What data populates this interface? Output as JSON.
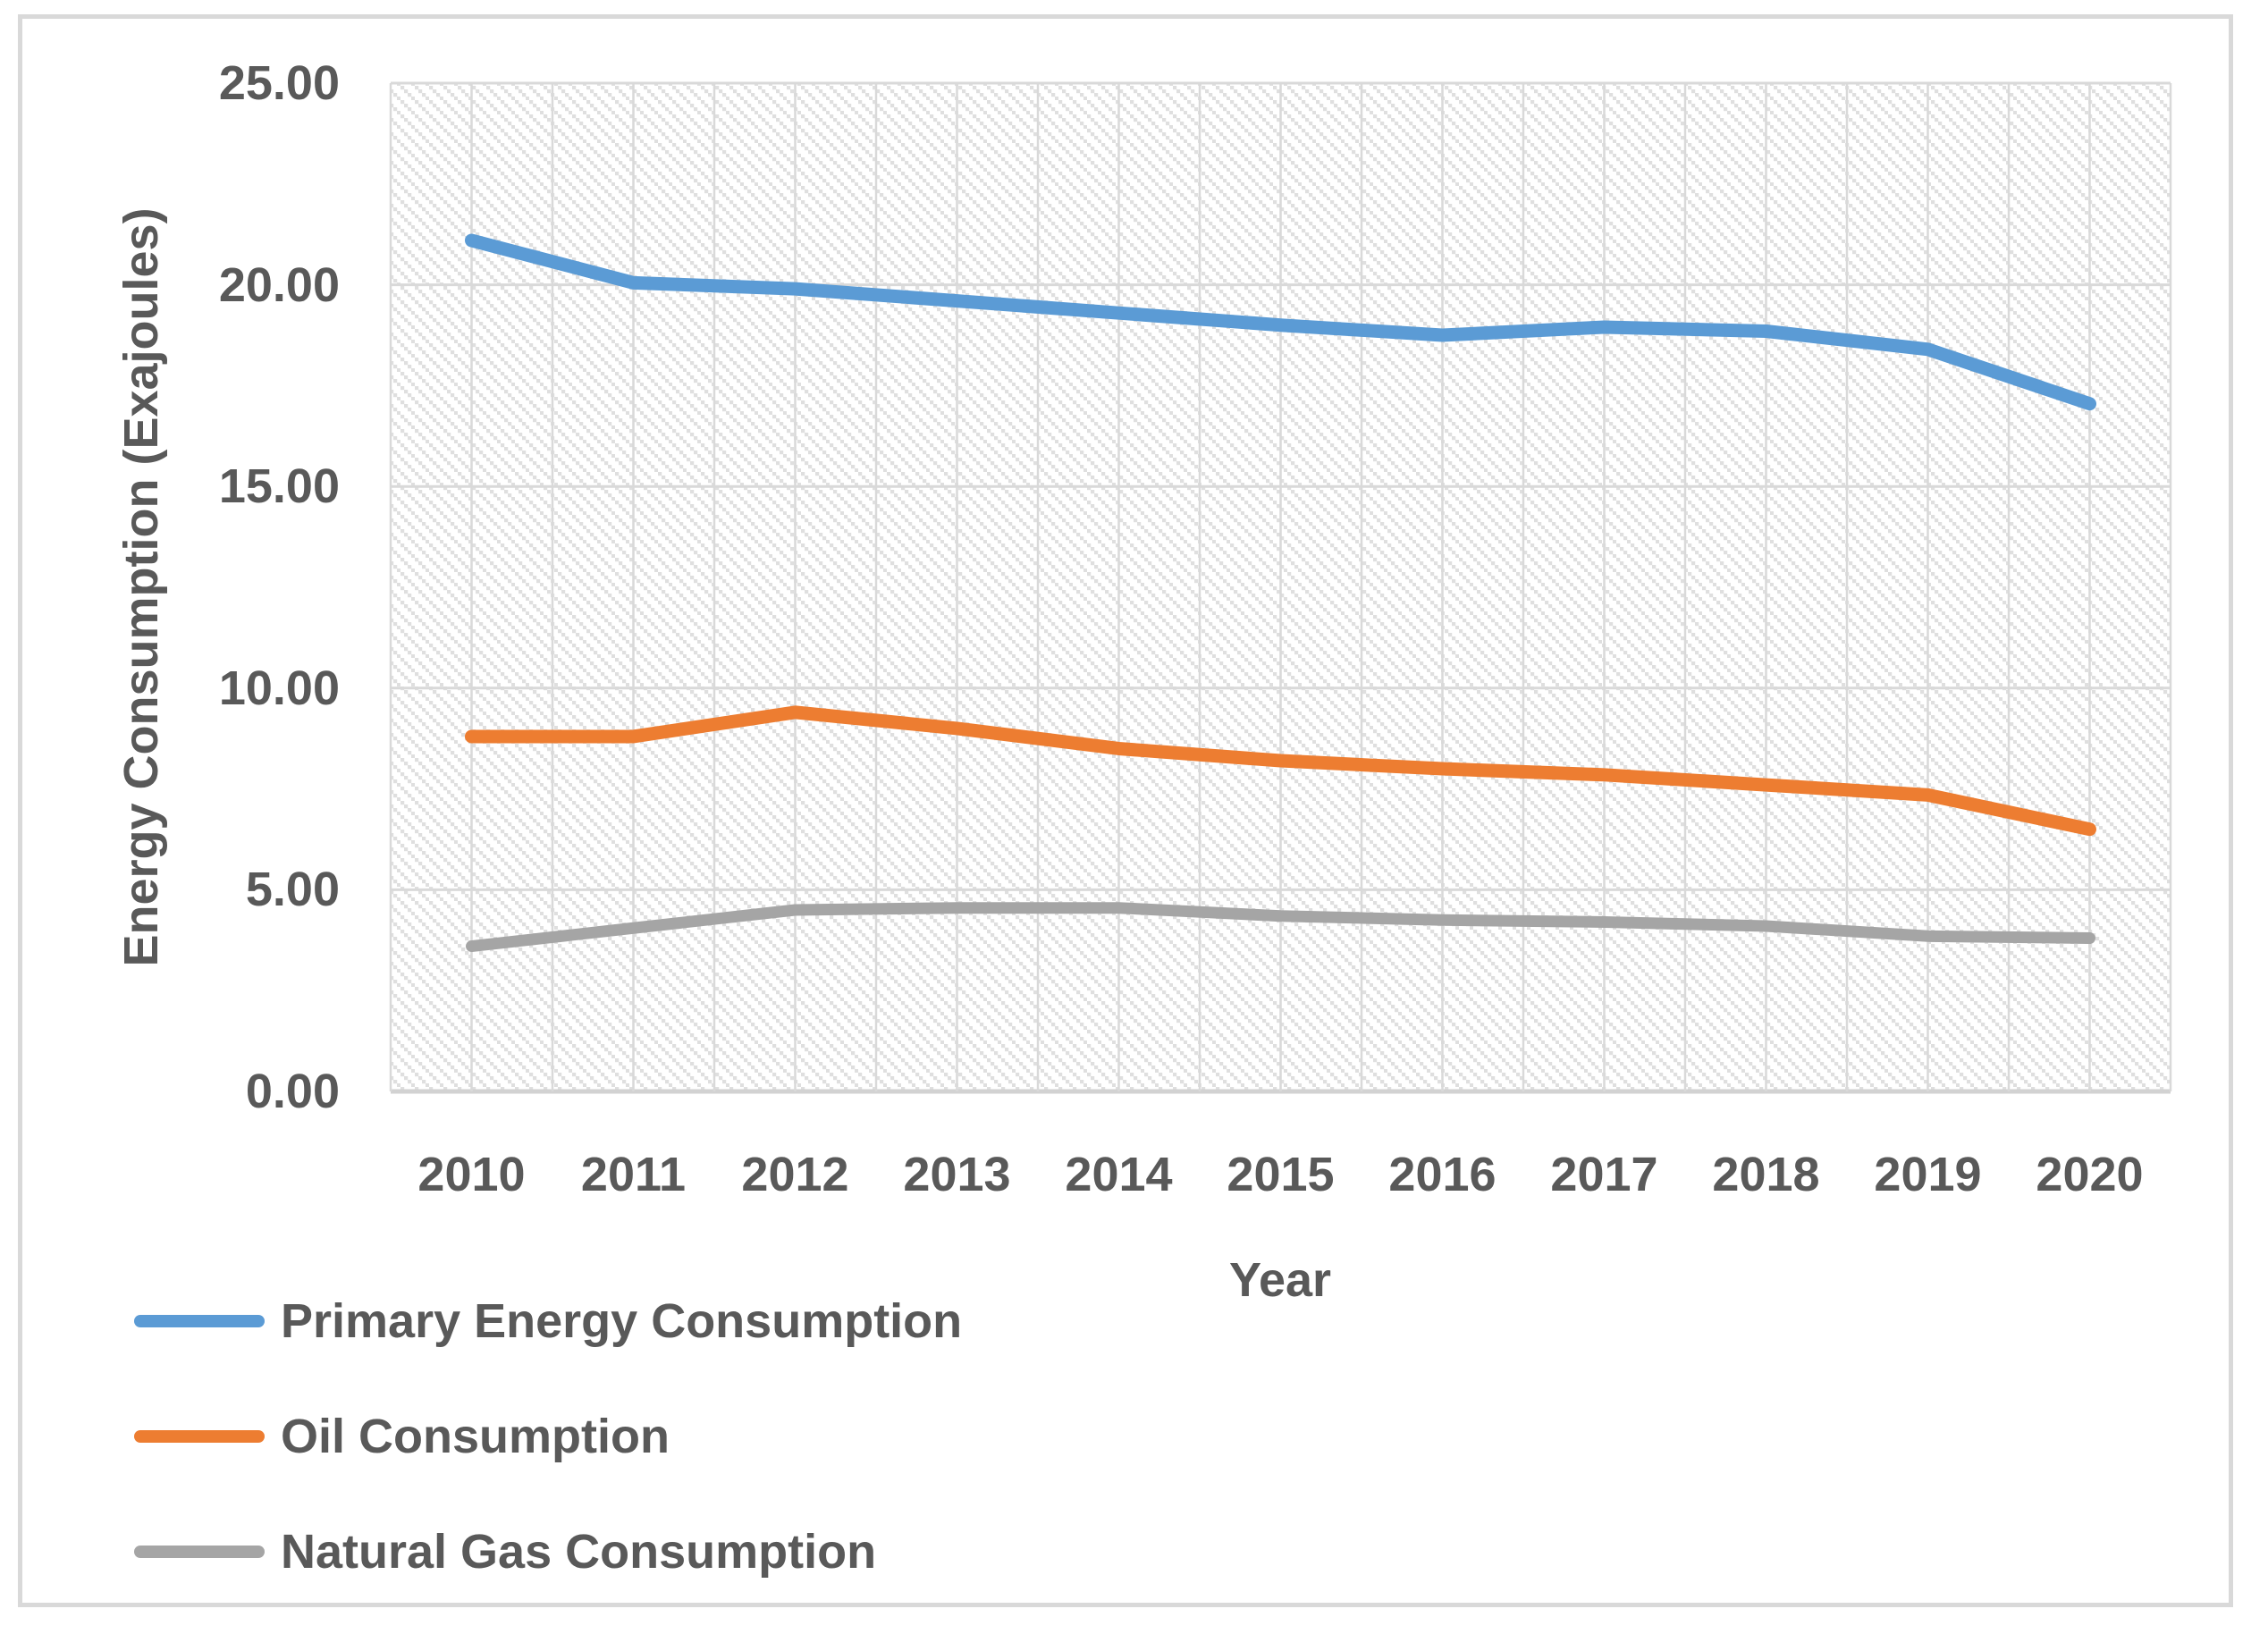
{
  "palette": {
    "frame_border": "#D9D9D9",
    "gridline": "#D9D9D9",
    "axis_line": "#D2D2D2",
    "hatch_dot": "#DFDFDF",
    "text": "#595959",
    "background": "#FFFFFF"
  },
  "y_axis": {
    "title": "Energy Consumption (Exajoules)",
    "tick_labels": [
      "25.00",
      "20.00",
      "15.00",
      "10.00",
      "5.00",
      "0.00"
    ],
    "tick_values": [
      25,
      20,
      15,
      10,
      5,
      0
    ]
  },
  "x_axis": {
    "title": "Year"
  },
  "chart_data": {
    "type": "line",
    "title": "",
    "xlabel": "Year",
    "ylabel": "Energy Consumption (Exajoules)",
    "ylim": [
      0,
      25
    ],
    "grid": "both",
    "legend_position": "bottom-left",
    "categories": [
      "2010",
      "2011",
      "2012",
      "2013",
      "2014",
      "2015",
      "2016",
      "2017",
      "2018",
      "2019",
      "2020"
    ],
    "series": [
      {
        "name": "Primary Energy Consumption",
        "color": "#5B9BD5",
        "stroke_width": 15,
        "values": [
          21.1,
          20.05,
          19.9,
          19.6,
          19.3,
          19.0,
          18.75,
          18.95,
          18.85,
          18.4,
          17.05
        ]
      },
      {
        "name": "Oil Consumption",
        "color": "#ED7D31",
        "stroke_width": 15,
        "values": [
          8.8,
          8.8,
          9.4,
          9.0,
          8.5,
          8.2,
          8.0,
          7.85,
          7.6,
          7.35,
          6.5
        ]
      },
      {
        "name": "Natural Gas Consumption",
        "color": "#A5A5A5",
        "stroke_width": 13,
        "values": [
          3.6,
          4.05,
          4.5,
          4.55,
          4.55,
          4.35,
          4.25,
          4.2,
          4.1,
          3.85,
          3.8
        ]
      }
    ]
  }
}
